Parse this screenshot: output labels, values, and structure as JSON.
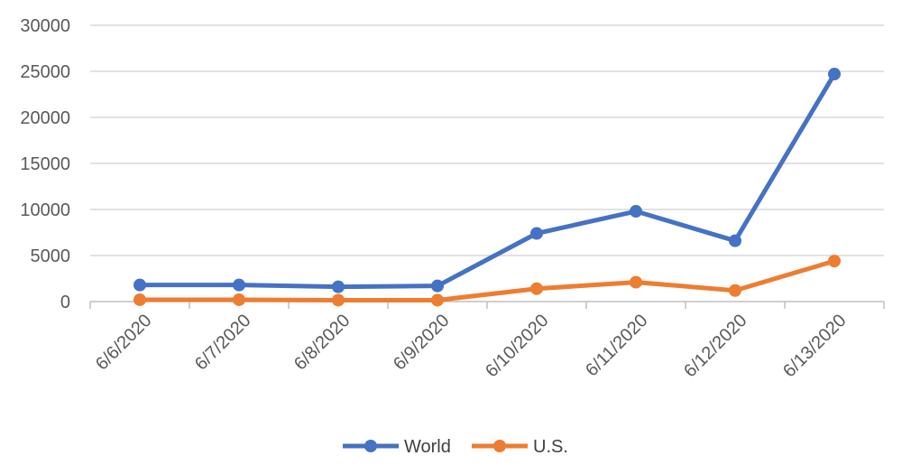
{
  "chart_data": {
    "type": "line",
    "categories": [
      "6/6/2020",
      "6/7/2020",
      "6/8/2020",
      "6/9/2020",
      "6/10/2020",
      "6/11/2020",
      "6/12/2020",
      "6/13/2020"
    ],
    "series": [
      {
        "name": "World",
        "color": "#4472C4",
        "values": [
          1800,
          1800,
          1600,
          1700,
          7400,
          9800,
          6600,
          24700
        ]
      },
      {
        "name": "U.S.",
        "color": "#ED7D31",
        "values": [
          200,
          200,
          150,
          150,
          1400,
          2100,
          1200,
          4400
        ]
      }
    ],
    "title": "",
    "xlabel": "",
    "ylabel": "",
    "ylim": [
      0,
      30000
    ],
    "yticks": [
      "0",
      "5000",
      "10000",
      "15000",
      "20000",
      "25000",
      "30000"
    ],
    "grid": true,
    "legend": "bottom"
  }
}
